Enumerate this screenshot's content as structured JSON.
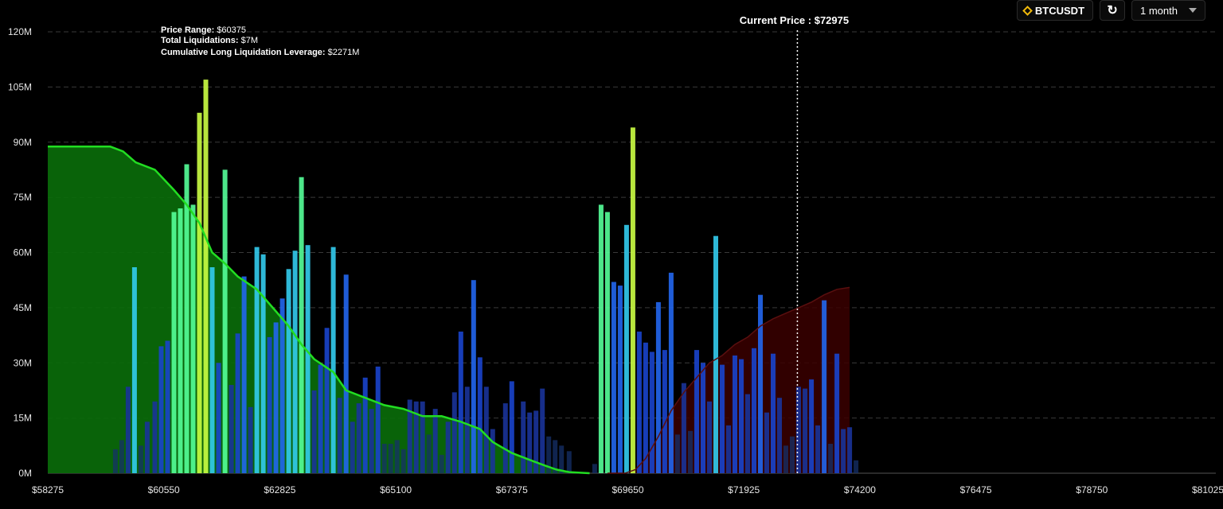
{
  "controls": {
    "symbol": "BTCUSDT",
    "period": "1 month"
  },
  "tooltip": {
    "price_range_label": "Price Range:",
    "price_range_value": "$60375",
    "total_liq_label": "Total Liquidations:",
    "total_liq_value": "$7M",
    "cum_label": "Cumulative Long Liquidation Leverage:",
    "cum_value": "$2271M"
  },
  "current_price_label": "Current Price : $72975",
  "chart_data": {
    "type": "bar",
    "x_range": [
      58275,
      81025
    ],
    "current_price": 72975,
    "ylim": [
      0,
      120
    ],
    "y_ticks": [
      0,
      15,
      30,
      45,
      60,
      75,
      90,
      105,
      120
    ],
    "y_tick_labels": [
      "0M",
      "15M",
      "30M",
      "45M",
      "60M",
      "75M",
      "90M",
      "105M",
      "120M"
    ],
    "x_ticks": [
      58275,
      60550,
      62825,
      65100,
      67375,
      69650,
      71925,
      74200,
      76475,
      78750,
      81025
    ],
    "x_tick_labels": [
      "$58275",
      "$60550",
      "$62825",
      "$65100",
      "$67375",
      "$69650",
      "$71925",
      "$74200",
      "$76475",
      "$78750",
      "$81025"
    ],
    "grid": true,
    "colors": {
      "long_area": "#0a6b0a",
      "long_line": "#22dd22",
      "short_area": "#3a0000",
      "current_line": "#ffffff"
    },
    "bars": [
      [
        59600,
        6.5
      ],
      [
        59725,
        9
      ],
      [
        59850,
        23.5
      ],
      [
        59975,
        56
      ],
      [
        60100,
        7.5
      ],
      [
        60225,
        14
      ],
      [
        60375,
        19.5
      ],
      [
        60500,
        34.5
      ],
      [
        60625,
        36
      ],
      [
        60750,
        71
      ],
      [
        60875,
        72
      ],
      [
        61000,
        84
      ],
      [
        61125,
        73
      ],
      [
        61250,
        98
      ],
      [
        61375,
        107
      ],
      [
        61500,
        56
      ],
      [
        61625,
        30
      ],
      [
        61750,
        82.5
      ],
      [
        61875,
        24
      ],
      [
        62000,
        38
      ],
      [
        62125,
        53.5
      ],
      [
        62250,
        18
      ],
      [
        62375,
        61.5
      ],
      [
        62500,
        59.5
      ],
      [
        62625,
        37
      ],
      [
        62750,
        41
      ],
      [
        62875,
        47.5
      ],
      [
        63000,
        55.5
      ],
      [
        63125,
        60.5
      ],
      [
        63250,
        80.5
      ],
      [
        63375,
        62
      ],
      [
        63500,
        22.5
      ],
      [
        63625,
        29.5
      ],
      [
        63750,
        39.5
      ],
      [
        63875,
        61.5
      ],
      [
        64000,
        20.5
      ],
      [
        64125,
        54
      ],
      [
        64250,
        14
      ],
      [
        64375,
        19
      ],
      [
        64500,
        26
      ],
      [
        64625,
        17.5
      ],
      [
        64750,
        29
      ],
      [
        64875,
        8
      ],
      [
        65000,
        8
      ],
      [
        65125,
        9
      ],
      [
        65250,
        6.5
      ],
      [
        65375,
        20
      ],
      [
        65500,
        19.5
      ],
      [
        65625,
        19.5
      ],
      [
        65750,
        10.5
      ],
      [
        65875,
        17.5
      ],
      [
        66000,
        5
      ],
      [
        66125,
        14
      ],
      [
        66250,
        22
      ],
      [
        66375,
        38.5
      ],
      [
        66500,
        23.5
      ],
      [
        66625,
        52.5
      ],
      [
        66750,
        31.5
      ],
      [
        66875,
        23.5
      ],
      [
        67000,
        12
      ],
      [
        67250,
        19
      ],
      [
        67375,
        25
      ],
      [
        67600,
        19.5
      ],
      [
        67725,
        16.5
      ],
      [
        67850,
        17
      ],
      [
        67975,
        23
      ],
      [
        68100,
        10
      ],
      [
        68225,
        9
      ],
      [
        68350,
        7.5
      ],
      [
        68500,
        6
      ],
      [
        69000,
        2.5
      ],
      [
        69125,
        73
      ],
      [
        69250,
        71
      ],
      [
        69375,
        52
      ],
      [
        69500,
        51
      ],
      [
        69625,
        67.5
      ],
      [
        69750,
        94
      ],
      [
        69875,
        38.5
      ],
      [
        70000,
        35.5
      ],
      [
        70125,
        33
      ],
      [
        70250,
        46.5
      ],
      [
        70375,
        33.5
      ],
      [
        70500,
        54.5
      ],
      [
        70625,
        10.5
      ],
      [
        70750,
        24.5
      ],
      [
        70875,
        11.5
      ],
      [
        71000,
        33.5
      ],
      [
        71125,
        30
      ],
      [
        71250,
        19.5
      ],
      [
        71375,
        64.5
      ],
      [
        71500,
        29.5
      ],
      [
        71625,
        13
      ],
      [
        71750,
        32
      ],
      [
        71875,
        31
      ],
      [
        72000,
        21.5
      ],
      [
        72125,
        34
      ],
      [
        72250,
        48.5
      ],
      [
        72375,
        16.5
      ],
      [
        72500,
        32.5
      ],
      [
        72625,
        20.5
      ],
      [
        72750,
        7.5
      ],
      [
        72875,
        10
      ],
      [
        73000,
        23.5
      ],
      [
        73125,
        23
      ],
      [
        73250,
        25.5
      ],
      [
        73375,
        13
      ],
      [
        73500,
        47
      ],
      [
        73625,
        8
      ],
      [
        73750,
        32.5
      ],
      [
        73875,
        12
      ],
      [
        74000,
        12.5
      ],
      [
        74125,
        3.5
      ]
    ],
    "long_cumulative": [
      [
        58275,
        88.8
      ],
      [
        59500,
        88.8
      ],
      [
        59750,
        87.5
      ],
      [
        60000,
        84.5
      ],
      [
        60375,
        82.5
      ],
      [
        60750,
        77
      ],
      [
        61000,
        73
      ],
      [
        61250,
        68
      ],
      [
        61500,
        60
      ],
      [
        61750,
        57
      ],
      [
        62000,
        53.5
      ],
      [
        62375,
        50
      ],
      [
        62750,
        44
      ],
      [
        63000,
        40
      ],
      [
        63250,
        35
      ],
      [
        63500,
        31
      ],
      [
        63875,
        27.5
      ],
      [
        64125,
        22.5
      ],
      [
        64500,
        20.5
      ],
      [
        64875,
        18.5
      ],
      [
        65250,
        17.5
      ],
      [
        65625,
        15.5
      ],
      [
        66000,
        15.5
      ],
      [
        66375,
        14
      ],
      [
        66750,
        12
      ],
      [
        67000,
        8.5
      ],
      [
        67375,
        5.5
      ],
      [
        67750,
        3.5
      ],
      [
        68000,
        2.2
      ],
      [
        68250,
        1
      ],
      [
        68500,
        0.3
      ],
      [
        68900,
        0
      ]
    ],
    "short_cumulative": [
      [
        69250,
        0
      ],
      [
        69600,
        0
      ],
      [
        69800,
        1
      ],
      [
        70000,
        4
      ],
      [
        70250,
        10
      ],
      [
        70500,
        17
      ],
      [
        70750,
        22
      ],
      [
        71000,
        26
      ],
      [
        71250,
        30
      ],
      [
        71500,
        32
      ],
      [
        71750,
        35
      ],
      [
        72000,
        37
      ],
      [
        72250,
        40
      ],
      [
        72500,
        42
      ],
      [
        72750,
        43.5
      ],
      [
        73000,
        45
      ],
      [
        73250,
        46.5
      ],
      [
        73500,
        48.5
      ],
      [
        73750,
        50
      ],
      [
        74000,
        50.5
      ]
    ]
  }
}
